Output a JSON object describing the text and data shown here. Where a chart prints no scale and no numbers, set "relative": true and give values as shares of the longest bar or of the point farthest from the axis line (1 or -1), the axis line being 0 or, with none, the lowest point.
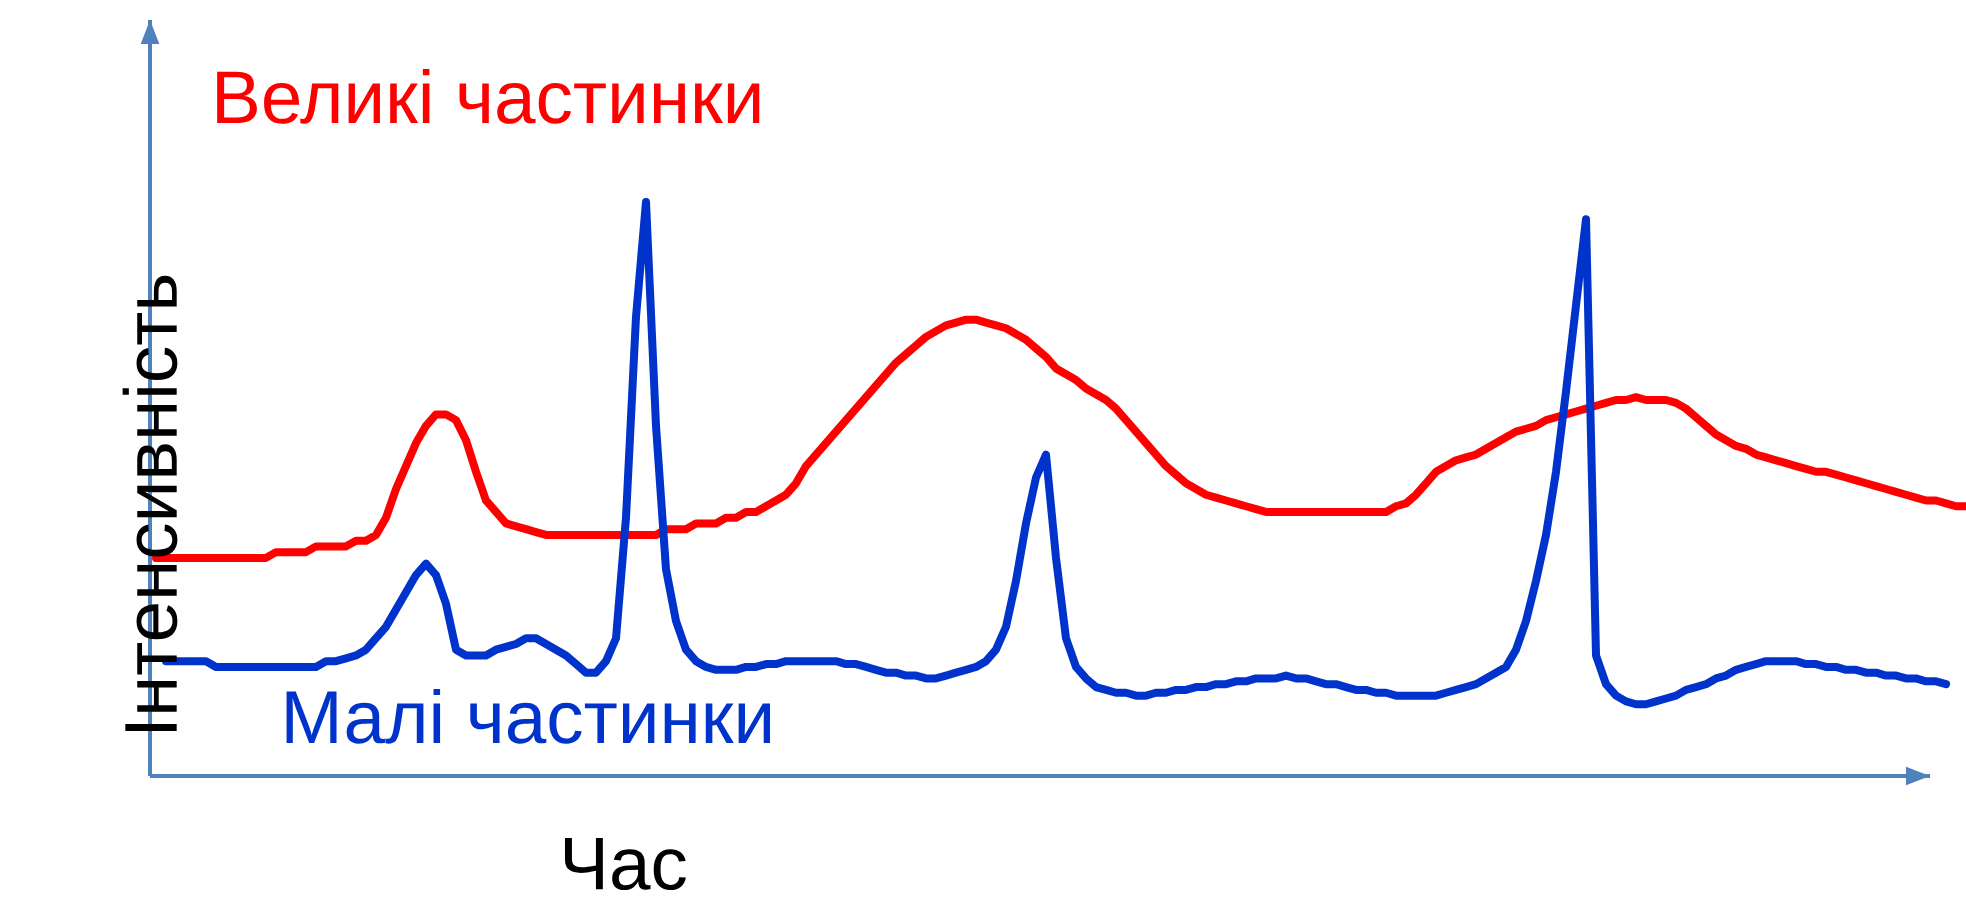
{
  "chart_data": {
    "type": "line",
    "relative": true,
    "xlabel": "Час",
    "ylabel": "Інтенсивність",
    "categories": [
      null,
      null,
      null,
      null,
      null,
      null,
      null,
      null,
      null,
      null,
      null,
      null,
      null,
      null,
      null,
      null,
      null,
      null,
      null,
      null,
      null,
      null,
      null,
      null,
      null,
      null,
      null,
      null,
      null,
      null,
      null,
      null,
      null,
      null,
      null,
      null,
      null,
      null,
      null,
      null,
      null,
      null,
      null,
      null,
      null,
      null,
      null,
      null,
      null,
      null,
      null,
      null,
      null,
      null,
      null,
      null,
      null,
      null,
      null,
      null,
      null,
      null,
      null,
      null,
      null,
      null,
      null,
      null,
      null,
      null,
      null,
      null,
      null,
      null,
      null,
      null,
      null,
      null,
      null,
      null,
      null,
      null,
      null,
      null,
      null,
      null,
      null,
      null,
      null,
      null,
      null,
      null,
      null,
      null,
      null,
      null,
      null,
      null,
      null,
      null,
      null,
      null,
      null,
      null,
      null,
      null,
      null,
      null,
      null,
      null,
      null,
      null,
      null,
      null,
      null,
      null,
      null,
      null,
      null,
      null,
      null,
      null,
      null,
      null,
      null,
      null,
      null,
      null,
      null,
      null,
      null,
      null,
      null,
      null,
      null,
      null,
      null,
      null,
      null,
      null,
      null,
      null,
      null,
      null,
      null,
      null,
      null,
      null,
      null,
      null,
      null,
      null,
      null,
      null,
      null,
      null,
      null,
      null,
      null,
      null,
      null,
      null,
      null,
      null,
      null,
      null,
      null,
      null,
      null,
      null,
      null,
      null,
      null,
      null,
      null,
      null,
      null,
      null,
      null,
      null,
      null,
      null
    ],
    "series": [
      {
        "name": "Великі частинки",
        "color": "#ff0000",
        "values": [
          0.38,
          0.38,
          0.38,
          0.38,
          0.38,
          0.38,
          0.38,
          0.38,
          0.38,
          0.38,
          0.38,
          0.38,
          0.39,
          0.39,
          0.39,
          0.39,
          0.4,
          0.4,
          0.4,
          0.4,
          0.41,
          0.41,
          0.42,
          0.45,
          0.5,
          0.54,
          0.58,
          0.61,
          0.63,
          0.63,
          0.62,
          0.585,
          0.53,
          0.48,
          0.46,
          0.44,
          0.435,
          0.43,
          0.425,
          0.42,
          0.42,
          0.42,
          0.42,
          0.42,
          0.42,
          0.42,
          0.42,
          0.42,
          0.42,
          0.42,
          0.42,
          0.43,
          0.43,
          0.43,
          0.44,
          0.44,
          0.44,
          0.45,
          0.45,
          0.46,
          0.46,
          0.47,
          0.48,
          0.49,
          0.51,
          0.54,
          0.56,
          0.58,
          0.6,
          0.62,
          0.64,
          0.66,
          0.68,
          0.7,
          0.72,
          0.735,
          0.75,
          0.765,
          0.775,
          0.785,
          0.79,
          0.795,
          0.795,
          0.79,
          0.785,
          0.78,
          0.77,
          0.76,
          0.745,
          0.73,
          0.71,
          0.7,
          0.69,
          0.675,
          0.665,
          0.655,
          0.64,
          0.62,
          0.6,
          0.58,
          0.56,
          0.54,
          0.525,
          0.51,
          0.5,
          0.49,
          0.485,
          0.48,
          0.475,
          0.47,
          0.465,
          0.46,
          0.46,
          0.46,
          0.46,
          0.46,
          0.46,
          0.46,
          0.46,
          0.46,
          0.46,
          0.46,
          0.46,
          0.46,
          0.47,
          0.475,
          0.49,
          0.51,
          0.53,
          0.54,
          0.55,
          0.555,
          0.56,
          0.57,
          0.58,
          0.59,
          0.6,
          0.605,
          0.61,
          0.62,
          0.625,
          0.63,
          0.635,
          0.64,
          0.645,
          0.65,
          0.655,
          0.655,
          0.66,
          0.655,
          0.655,
          0.655,
          0.65,
          0.64,
          0.625,
          0.61,
          0.595,
          0.585,
          0.575,
          0.57,
          0.56,
          0.555,
          0.55,
          0.545,
          0.54,
          0.535,
          0.53,
          0.53,
          0.525,
          0.52,
          0.515,
          0.51,
          0.505,
          0.5,
          0.495,
          0.49,
          0.485,
          0.48,
          0.48,
          0.475,
          0.47,
          0.47
        ]
      },
      {
        "name": "Малі частинки",
        "color": "#0033cc",
        "values": [
          null,
          0.2,
          0.2,
          0.2,
          0.2,
          0.2,
          0.19,
          0.19,
          0.19,
          0.19,
          0.19,
          0.19,
          0.19,
          0.19,
          0.19,
          0.19,
          0.19,
          0.2,
          0.2,
          0.205,
          0.21,
          0.22,
          0.24,
          0.26,
          0.29,
          0.32,
          0.35,
          0.37,
          0.35,
          0.3,
          0.22,
          0.21,
          0.21,
          0.21,
          0.22,
          0.225,
          0.23,
          0.24,
          0.24,
          0.23,
          0.22,
          0.21,
          0.195,
          0.18,
          0.18,
          0.2,
          0.24,
          0.45,
          0.8,
          1,
          0.61,
          0.36,
          0.27,
          0.22,
          0.2,
          0.19,
          0.185,
          0.185,
          0.185,
          0.19,
          0.19,
          0.195,
          0.195,
          0.2,
          0.2,
          0.2,
          0.2,
          0.2,
          0.2,
          0.195,
          0.195,
          0.19,
          0.185,
          0.18,
          0.18,
          0.175,
          0.175,
          0.17,
          0.17,
          0.175,
          0.18,
          0.185,
          0.19,
          0.2,
          0.22,
          0.26,
          0.34,
          0.44,
          0.52,
          0.56,
          0.38,
          0.24,
          0.19,
          0.17,
          0.155,
          0.15,
          0.145,
          0.145,
          0.14,
          0.14,
          0.145,
          0.145,
          0.15,
          0.15,
          0.155,
          0.155,
          0.16,
          0.16,
          0.165,
          0.165,
          0.17,
          0.17,
          0.17,
          0.175,
          0.17,
          0.17,
          0.165,
          0.16,
          0.16,
          0.155,
          0.15,
          0.15,
          0.145,
          0.145,
          0.14,
          0.14,
          0.14,
          0.14,
          0.14,
          0.145,
          0.15,
          0.155,
          0.16,
          0.17,
          0.18,
          0.19,
          0.22,
          0.27,
          0.34,
          0.42,
          0.53,
          0.67,
          0.82,
          0.97,
          0.21,
          0.16,
          0.14,
          0.13,
          0.125,
          0.125,
          0.13,
          0.135,
          0.14,
          0.15,
          0.155,
          0.16,
          0.17,
          0.175,
          0.185,
          0.19,
          0.195,
          0.2,
          0.2,
          0.2,
          0.2,
          0.195,
          0.195,
          0.19,
          0.19,
          0.185,
          0.185,
          0.18,
          0.18,
          0.175,
          0.175,
          0.17,
          0.17,
          0.165,
          0.165,
          0.16,
          null,
          null
        ]
      }
    ]
  }
}
